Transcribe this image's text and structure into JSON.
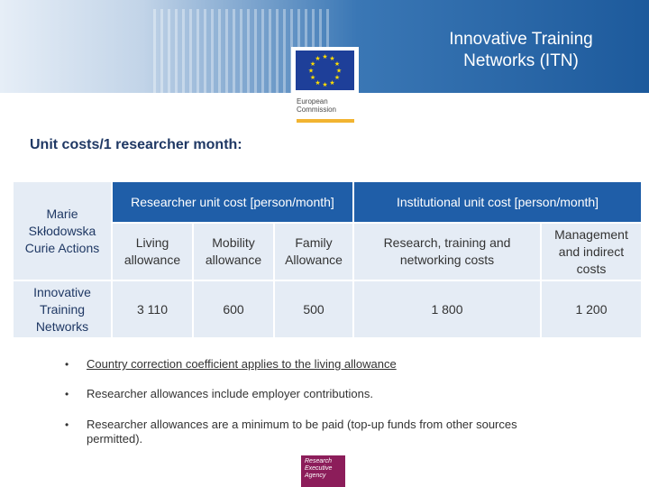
{
  "header": {
    "title": "Innovative Training Networks (ITN)",
    "logo_text_line1": "European",
    "logo_text_line2": "Commission"
  },
  "subtitle": "Unit costs/1 researcher month:",
  "table": {
    "row_label_header": "Marie Skłodowska Curie Actions",
    "row_label": "Innovative Training Networks",
    "group1_header": "Researcher unit cost [person/month]",
    "group2_header": "Institutional unit cost [person/month]",
    "col_headers": [
      "Living allowance",
      "Mobility allowance",
      "Family Allowance",
      "Research, training and networking costs",
      "Management and indirect costs"
    ],
    "values": [
      "3 110",
      "600",
      "500",
      "1 800",
      "1 200"
    ]
  },
  "bullets": [
    "Country correction coefficient applies to the living allowance",
    "Researcher allowances include employer contributions.",
    "Researcher allowances are a minimum to be paid (top-up funds from other sources permitted)."
  ],
  "bullet_marker": "•",
  "footer_logo": {
    "line1": "Research",
    "line2": "Executive",
    "line3": "Agency"
  },
  "colors": {
    "header_blue": "#1d5a9c",
    "table_header": "#1f5ea8",
    "table_body": "#e5ecf5",
    "title_text": "#1f3864",
    "rea_purple": "#8c1d5a"
  }
}
